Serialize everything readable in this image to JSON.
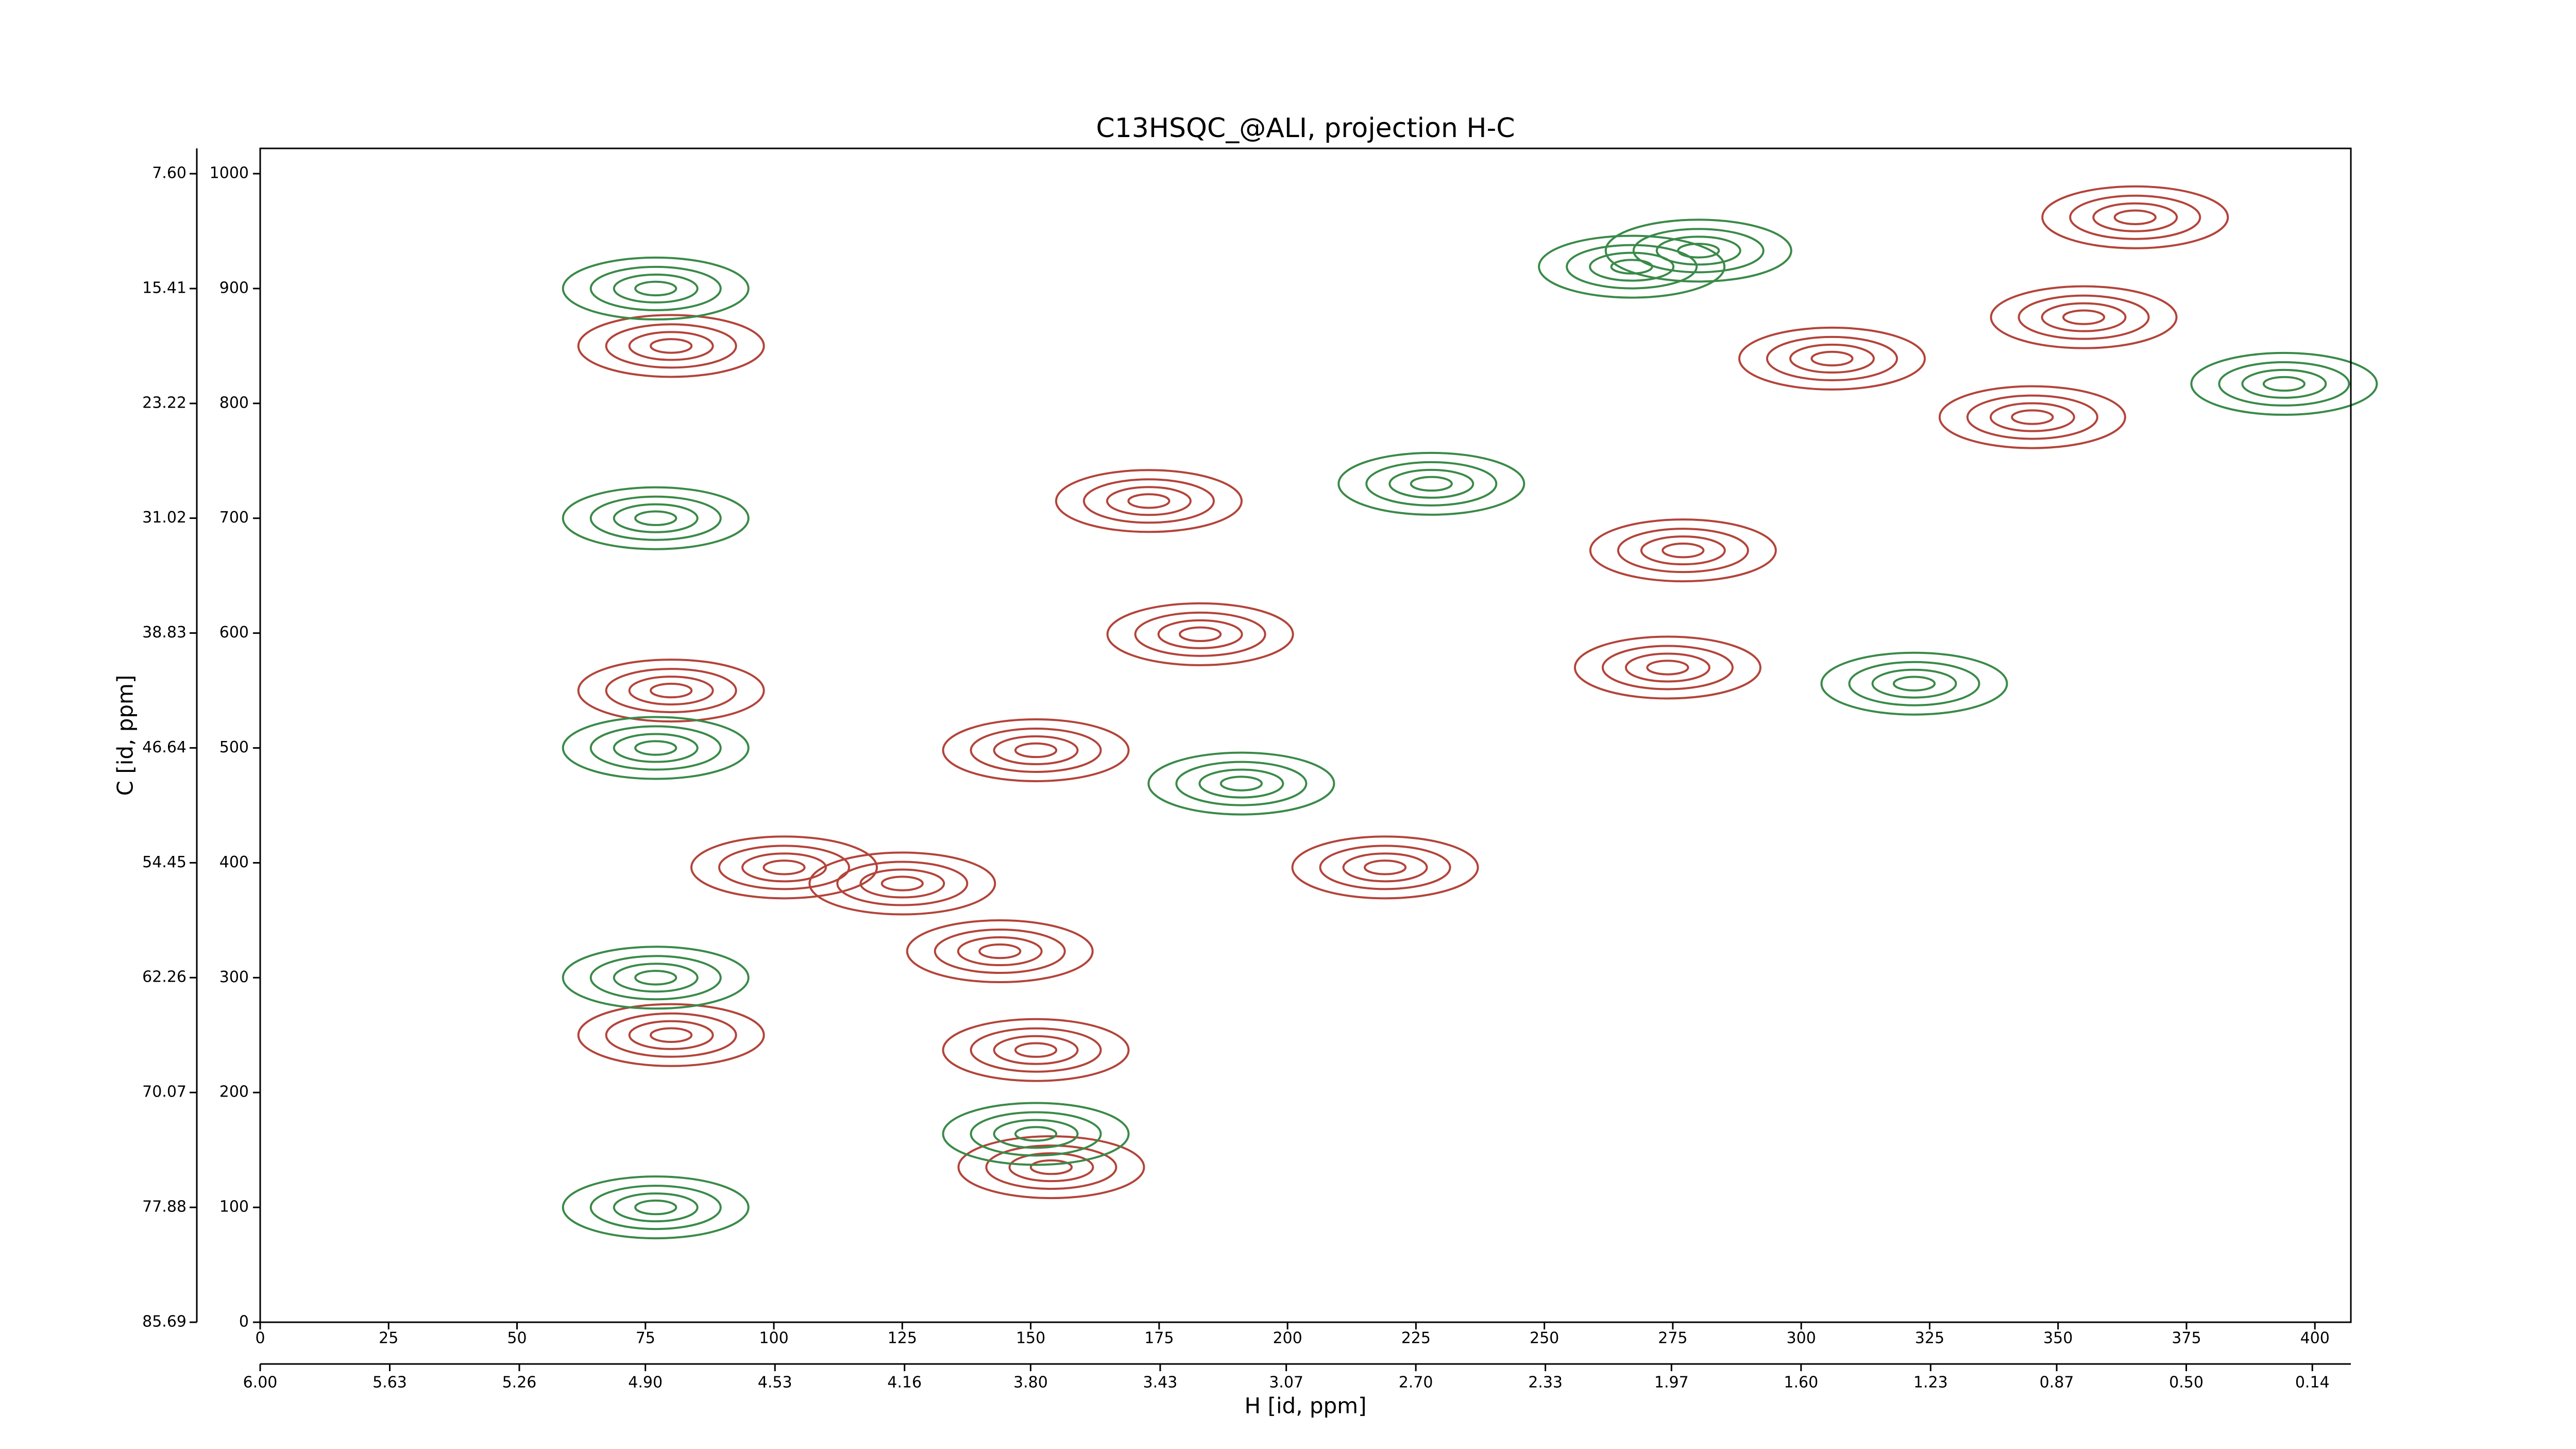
{
  "chart_data": {
    "type": "contour",
    "title": "C13HSQC_@ALI, projection H-C",
    "x_label": "H [id, ppm]",
    "y_label": "C [id, ppm]",
    "xlim": [
      0,
      407
    ],
    "xticks": [
      0,
      25,
      50,
      75,
      100,
      125,
      150,
      175,
      200,
      225,
      250,
      275,
      300,
      325,
      350,
      375,
      400
    ],
    "x2lim": [
      6.0,
      0.03
    ],
    "x2ticks": [
      {
        "value": 6.0,
        "label": "6.00"
      },
      {
        "value": 5.63,
        "label": "5.63"
      },
      {
        "value": 5.26,
        "label": "5.26"
      },
      {
        "value": 4.9,
        "label": "4.90"
      },
      {
        "value": 4.53,
        "label": "4.53"
      },
      {
        "value": 4.16,
        "label": "4.16"
      },
      {
        "value": 3.8,
        "label": "3.80"
      },
      {
        "value": 3.43,
        "label": "3.43"
      },
      {
        "value": 3.07,
        "label": "3.07"
      },
      {
        "value": 2.7,
        "label": "2.70"
      },
      {
        "value": 2.33,
        "label": "2.33"
      },
      {
        "value": 1.97,
        "label": "1.97"
      },
      {
        "value": 1.6,
        "label": "1.60"
      },
      {
        "value": 1.23,
        "label": "1.23"
      },
      {
        "value": 0.87,
        "label": "0.87"
      },
      {
        "value": 0.5,
        "label": "0.50"
      },
      {
        "value": 0.14,
        "label": "0.14"
      }
    ],
    "ylim": [
      0,
      1022
    ],
    "yticks": [
      0,
      100,
      200,
      300,
      400,
      500,
      600,
      700,
      800,
      900,
      1000
    ],
    "y2lim": [
      85.69,
      5.88
    ],
    "y2ticks": [
      {
        "value": 85.69,
        "label": "85.69"
      },
      {
        "value": 77.88,
        "label": "77.88"
      },
      {
        "value": 70.07,
        "label": "70.07"
      },
      {
        "value": 62.26,
        "label": "62.26"
      },
      {
        "value": 54.45,
        "label": "54.45"
      },
      {
        "value": 46.64,
        "label": "46.64"
      },
      {
        "value": 38.83,
        "label": "38.83"
      },
      {
        "value": 31.02,
        "label": "31.02"
      },
      {
        "value": 23.22,
        "label": "23.22"
      },
      {
        "value": 15.41,
        "label": "15.41"
      },
      {
        "value": 7.6,
        "label": "7.60"
      }
    ],
    "series": [
      {
        "color": "#b3443a",
        "x": [
          277,
          173,
          183,
          125,
          102,
          144,
          345,
          355,
          306,
          151,
          154,
          274,
          151,
          219,
          365,
          80,
          80,
          80
        ],
        "values": [
          672,
          715,
          599,
          382,
          396,
          323,
          788,
          875,
          839,
          237,
          135,
          570,
          498,
          396,
          962,
          250,
          550,
          850
        ]
      },
      {
        "color": "#3a8a48",
        "x": [
          77,
          77,
          77,
          77,
          77,
          267,
          280,
          151,
          191,
          394,
          228,
          322
        ],
        "values": [
          100,
          300,
          500,
          700,
          900,
          919,
          933,
          164,
          469,
          817,
          730,
          556
        ]
      }
    ]
  }
}
